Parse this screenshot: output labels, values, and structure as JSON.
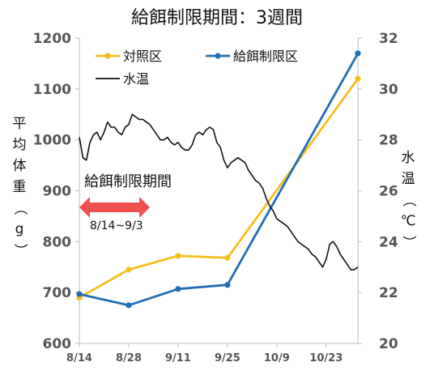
{
  "chart_data": {
    "type": "line",
    "title": "給餌制限期間：3週間",
    "ylabel_left": [
      "平",
      "均",
      "体",
      "重",
      "（",
      "g",
      "）"
    ],
    "ylabel_right": [
      "水",
      "温",
      "（",
      "℃",
      "）"
    ],
    "x_ticks": [
      "8/14",
      "8/28",
      "9/11",
      "9/25",
      "10/9",
      "10/23"
    ],
    "x_tick_days": [
      0,
      14,
      28,
      42,
      56,
      70
    ],
    "xlim_days": [
      0,
      79
    ],
    "ylim_left": [
      600,
      1200
    ],
    "yticks_left": [
      600,
      700,
      800,
      900,
      1000,
      1100,
      1200
    ],
    "ylim_right": [
      20,
      32
    ],
    "yticks_right": [
      20,
      22,
      24,
      26,
      28,
      30,
      32
    ],
    "legend": {
      "position": "top-left",
      "entries": [
        "対照区",
        "給餌制限区",
        "水温"
      ]
    },
    "series": [
      {
        "name": "対照区",
        "axis": "left",
        "color": "#f5bf1e",
        "x": [
          0,
          14,
          28,
          42,
          79
        ],
        "values": [
          690,
          745,
          772,
          768,
          1120
        ]
      },
      {
        "name": "給餌制限区",
        "axis": "left",
        "color": "#1f6fb5",
        "x": [
          0,
          14,
          28,
          42,
          79
        ],
        "values": [
          697,
          675,
          707,
          715,
          1170
        ]
      },
      {
        "name": "水温",
        "axis": "right",
        "color": "#111111",
        "x": [
          0,
          1,
          2,
          3,
          4,
          5,
          6,
          7,
          8,
          9,
          10,
          11,
          12,
          13,
          14,
          15,
          16,
          17,
          18,
          19,
          20,
          21,
          22,
          23,
          24,
          25,
          26,
          27,
          28,
          29,
          30,
          31,
          32,
          33,
          34,
          35,
          36,
          37,
          38,
          39,
          40,
          41,
          42,
          43,
          44,
          45,
          46,
          47,
          48,
          49,
          50,
          51,
          52,
          53,
          54,
          55,
          56,
          57,
          58,
          59,
          60,
          61,
          62,
          63,
          64,
          65,
          66,
          67,
          68,
          69,
          70,
          71,
          72,
          73,
          74,
          75,
          76,
          77,
          78,
          79
        ],
        "values": [
          28.1,
          27.3,
          27.2,
          27.9,
          28.2,
          28.3,
          28.0,
          28.3,
          28.7,
          28.5,
          28.5,
          28.3,
          28.2,
          28.5,
          28.6,
          29.0,
          28.9,
          28.8,
          28.8,
          28.7,
          28.6,
          28.4,
          28.2,
          28.0,
          28.0,
          28.1,
          27.9,
          27.8,
          27.9,
          27.7,
          27.6,
          27.6,
          27.8,
          28.2,
          28.3,
          28.2,
          28.4,
          28.5,
          28.4,
          27.9,
          27.7,
          27.2,
          26.9,
          27.1,
          27.2,
          27.3,
          27.2,
          27.1,
          26.8,
          26.6,
          26.4,
          26.3,
          26.1,
          25.7,
          25.4,
          25.2,
          24.9,
          24.8,
          24.7,
          24.6,
          24.4,
          24.2,
          24.0,
          23.9,
          23.8,
          23.7,
          23.5,
          23.4,
          23.2,
          23.0,
          23.3,
          23.9,
          24.0,
          23.8,
          23.5,
          23.3,
          23.1,
          22.9,
          22.9,
          23.0
        ]
      }
    ],
    "annotation": {
      "text": "給餌制限期間",
      "range_label": "8/14~9/3",
      "arrow_from_day": 0,
      "arrow_to_day": 20,
      "arrow_color": "#f05050"
    },
    "grid": false
  }
}
